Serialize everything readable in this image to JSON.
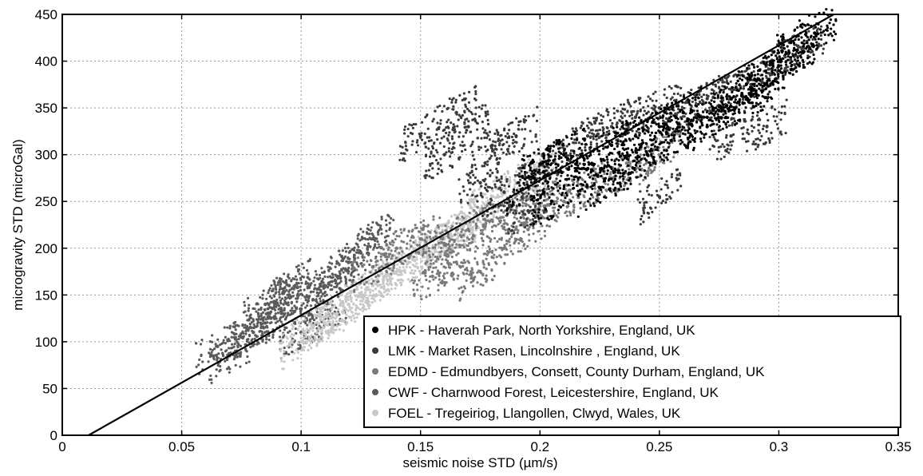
{
  "chart_data": {
    "type": "scatter",
    "xlabel": "seismic noise STD (µm/s)",
    "ylabel": "microgravity STD (microGal)",
    "xlim": [
      0,
      0.35
    ],
    "ylim": [
      0,
      450
    ],
    "x_ticks": [
      "0",
      "0.05",
      "0.1",
      "0.15",
      "0.2",
      "0.25",
      "0.3",
      "0.35"
    ],
    "y_ticks": [
      "0",
      "50",
      "100",
      "150",
      "200",
      "250",
      "300",
      "350",
      "400",
      "450"
    ],
    "grid": true,
    "legend_position": "bottom-right",
    "fit_line": {
      "x": [
        0.011,
        0.323
      ],
      "y": [
        0,
        450
      ],
      "color": "#000000"
    },
    "series": [
      {
        "name": "HPK - Haverah Park, North Yorkshire, England, UK",
        "color": "#000000",
        "x": [
          0.195,
          0.2,
          0.21,
          0.22,
          0.23,
          0.24,
          0.25,
          0.26,
          0.27,
          0.28,
          0.29,
          0.3,
          0.31,
          0.315,
          0.305,
          0.295,
          0.285,
          0.27,
          0.255,
          0.245,
          0.235,
          0.225,
          0.215,
          0.205
        ],
        "y": [
          265,
          290,
          300,
          285,
          310,
          320,
          330,
          345,
          340,
          360,
          380,
          395,
          410,
          430,
          420,
          375,
          355,
          330,
          315,
          300,
          280,
          265,
          290,
          250
        ]
      },
      {
        "name": "LMK - Market Rasen, Lincolnshire , England, UK",
        "color": "#3a3a3a",
        "x": [
          0.15,
          0.16,
          0.17,
          0.18,
          0.19,
          0.2,
          0.21,
          0.22,
          0.23,
          0.24,
          0.25,
          0.26,
          0.27,
          0.28,
          0.29,
          0.3,
          0.31,
          0.175,
          0.185,
          0.195,
          0.165,
          0.25,
          0.28,
          0.295
        ],
        "y": [
          320,
          300,
          330,
          310,
          320,
          280,
          300,
          320,
          330,
          340,
          350,
          345,
          360,
          370,
          380,
          400,
          415,
          270,
          260,
          240,
          345,
          255,
          320,
          330
        ]
      },
      {
        "name": "EDMD - Edmundbyers, Consett, County Durham, England, UK",
        "color": "#7a7a7a",
        "x": [
          0.13,
          0.14,
          0.15,
          0.16,
          0.17,
          0.18,
          0.19,
          0.2,
          0.21,
          0.22,
          0.23,
          0.24,
          0.25,
          0.155,
          0.165,
          0.175,
          0.185,
          0.195
        ],
        "y": [
          180,
          200,
          210,
          205,
          220,
          230,
          240,
          245,
          250,
          265,
          275,
          285,
          300,
          170,
          185,
          175,
          200,
          220
        ]
      },
      {
        "name": "CWF - Charnwood Forest, Leicestershire, England, UK",
        "color": "#5a5a5a",
        "x": [
          0.065,
          0.07,
          0.075,
          0.08,
          0.085,
          0.09,
          0.095,
          0.1,
          0.105,
          0.11,
          0.115,
          0.12,
          0.125,
          0.13,
          0.085,
          0.095,
          0.1,
          0.11
        ],
        "y": [
          95,
          85,
          105,
          110,
          120,
          140,
          150,
          135,
          145,
          160,
          170,
          185,
          195,
          210,
          140,
          160,
          110,
          125
        ]
      },
      {
        "name": "FOEL - Tregeiriog, Llangollen, Clwyd, Wales, UK",
        "color": "#c8c8c8",
        "x": [
          0.1,
          0.105,
          0.11,
          0.115,
          0.12,
          0.125,
          0.13,
          0.135,
          0.14,
          0.145,
          0.15,
          0.155,
          0.16,
          0.165,
          0.17,
          0.175,
          0.18,
          0.19,
          0.2
        ],
        "y": [
          100,
          115,
          120,
          130,
          140,
          150,
          160,
          170,
          175,
          185,
          195,
          200,
          210,
          215,
          225,
          240,
          255,
          270,
          280
        ]
      }
    ]
  }
}
